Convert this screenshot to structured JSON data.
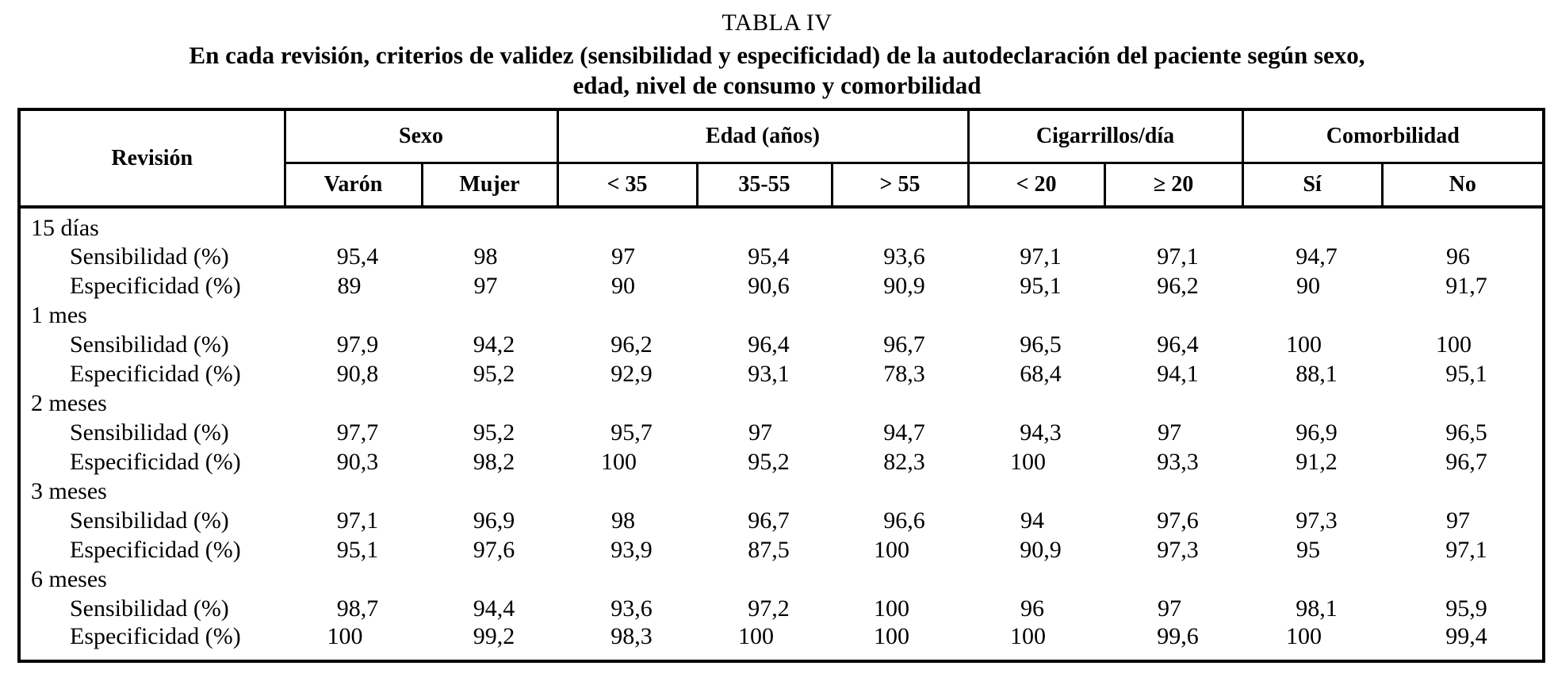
{
  "title": "TABLA IV",
  "subtitle_line1": "En cada revisión, criterios de validez (sensibilidad y especificidad) de la autodeclaración del paciente según sexo,",
  "subtitle_line2": "edad, nivel de consumo y comorbilidad",
  "table": {
    "corner_header": "Revisión",
    "groups": [
      {
        "label": "Sexo",
        "cols": [
          "Varón",
          "Mujer"
        ]
      },
      {
        "label": "Edad (años)",
        "cols": [
          "< 35",
          "35-55",
          "> 55"
        ]
      },
      {
        "label": "Cigarrillos/día",
        "cols": [
          "< 20",
          "≥ 20"
        ]
      },
      {
        "label": "Comorbilidad",
        "cols": [
          "Sí",
          "No"
        ]
      }
    ],
    "sections": [
      {
        "period": "15 días",
        "rows": [
          {
            "label": "Sensibilidad (%)",
            "values": [
              "95,4",
              "98",
              "97",
              "95,4",
              "93,6",
              "97,1",
              "97,1",
              "94,7",
              "96"
            ]
          },
          {
            "label": "Especificidad (%)",
            "values": [
              "89",
              "97",
              "90",
              "90,6",
              "90,9",
              "95,1",
              "96,2",
              "90",
              "91,7"
            ]
          }
        ]
      },
      {
        "period": "1 mes",
        "rows": [
          {
            "label": "Sensibilidad (%)",
            "values": [
              "97,9",
              "94,2",
              "96,2",
              "96,4",
              "96,7",
              "96,5",
              "96,4",
              "100",
              "100"
            ]
          },
          {
            "label": "Especificidad (%)",
            "values": [
              "90,8",
              "95,2",
              "92,9",
              "93,1",
              "78,3",
              "68,4",
              "94,1",
              "88,1",
              "95,1"
            ]
          }
        ]
      },
      {
        "period": "2 meses",
        "rows": [
          {
            "label": "Sensibilidad (%)",
            "values": [
              "97,7",
              "95,2",
              "95,7",
              "97",
              "94,7",
              "94,3",
              "97",
              "96,9",
              "96,5"
            ]
          },
          {
            "label": "Especificidad (%)",
            "values": [
              "90,3",
              "98,2",
              "100",
              "95,2",
              "82,3",
              "100",
              "93,3",
              "91,2",
              "96,7"
            ]
          }
        ]
      },
      {
        "period": "3 meses",
        "rows": [
          {
            "label": "Sensibilidad (%)",
            "values": [
              "97,1",
              "96,9",
              "98",
              "96,7",
              "96,6",
              "94",
              "97,6",
              "97,3",
              "97"
            ]
          },
          {
            "label": "Especificidad (%)",
            "values": [
              "95,1",
              "97,6",
              "93,9",
              "87,5",
              "100",
              "90,9",
              "97,3",
              "95",
              "97,1"
            ]
          }
        ]
      },
      {
        "period": "6 meses",
        "rows": [
          {
            "label": "Sensibilidad (%)",
            "values": [
              "98,7",
              "94,4",
              "93,6",
              "97,2",
              "100",
              "96",
              "97",
              "98,1",
              "95,9"
            ]
          },
          {
            "label": "Especificidad (%)",
            "values": [
              "100",
              "99,2",
              "98,3",
              "100",
              "100",
              "100",
              "99,6",
              "100",
              "99,4"
            ]
          }
        ]
      }
    ]
  }
}
